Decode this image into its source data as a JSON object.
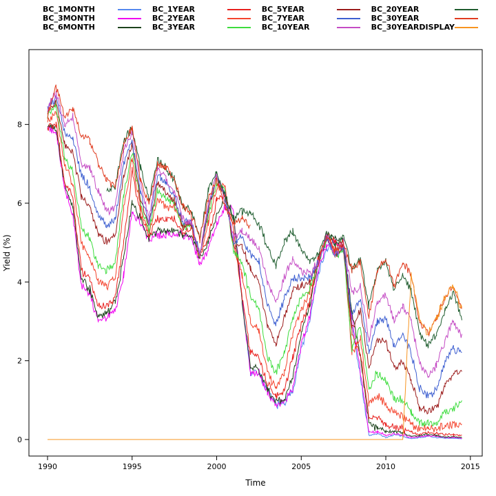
{
  "chart_data": {
    "type": "line",
    "title": "",
    "xlabel": "Time",
    "ylabel": "Yield (%)",
    "legend_position": "top",
    "grid": false,
    "background": "#ffffff",
    "axis_color": "#000000",
    "xlim": [
      1988.9,
      2015.7
    ],
    "ylim": [
      -0.42,
      9.9
    ],
    "xticks": [
      1990,
      1995,
      2000,
      2005,
      2010,
      2015
    ],
    "yticks": [
      0,
      2,
      4,
      6,
      8
    ],
    "x": [
      1990,
      1990.5,
      1991,
      1991.5,
      1992,
      1992.5,
      1993,
      1993.5,
      1994,
      1994.5,
      1995,
      1995.5,
      1996,
      1996.5,
      1997,
      1997.5,
      1998,
      1998.5,
      1999,
      1999.5,
      2000,
      2000.5,
      2001,
      2001.5,
      2002,
      2002.5,
      2003,
      2003.5,
      2004,
      2004.5,
      2005,
      2005.5,
      2006,
      2006.5,
      2007,
      2007.5,
      2008,
      2008.5,
      2009,
      2009.5,
      2010,
      2010.5,
      2011,
      2011.5,
      2012,
      2012.5,
      2013,
      2013.5,
      2014,
      2014.5
    ],
    "series": [
      {
        "name": "BC_1MONTH",
        "color": "#5588EE",
        "values": [
          null,
          null,
          null,
          null,
          null,
          null,
          null,
          null,
          null,
          null,
          null,
          null,
          null,
          null,
          null,
          null,
          null,
          null,
          null,
          null,
          null,
          null,
          null,
          3.6,
          1.7,
          1.7,
          1.2,
          0.9,
          0.9,
          1.25,
          2.3,
          3.0,
          4.2,
          4.8,
          5.0,
          4.8,
          2.9,
          1.6,
          0.1,
          0.15,
          0.05,
          0.12,
          0.08,
          0.02,
          0.05,
          0.08,
          0.05,
          0.03,
          0.03,
          0.02
        ]
      },
      {
        "name": "BC_3MONTH",
        "color": "#F000F0",
        "values": [
          7.9,
          7.8,
          6.4,
          5.7,
          3.9,
          3.7,
          3.0,
          3.1,
          3.3,
          4.2,
          5.8,
          5.5,
          5.1,
          5.2,
          5.2,
          5.2,
          5.2,
          5.1,
          4.5,
          4.8,
          5.5,
          5.9,
          5.8,
          3.6,
          1.7,
          1.7,
          1.2,
          0.9,
          0.95,
          1.3,
          2.4,
          3.1,
          4.3,
          4.9,
          5.0,
          4.9,
          3.1,
          1.7,
          0.2,
          0.2,
          0.1,
          0.15,
          0.12,
          0.05,
          0.07,
          0.1,
          0.08,
          0.05,
          0.05,
          0.03
        ]
      },
      {
        "name": "BC_6MONTH",
        "color": "#1C421C",
        "values": [
          8.0,
          7.9,
          6.5,
          5.9,
          4.1,
          3.8,
          3.1,
          3.2,
          3.5,
          4.6,
          6.0,
          5.6,
          5.1,
          5.3,
          5.3,
          5.3,
          5.2,
          5.2,
          4.6,
          5.0,
          5.7,
          6.1,
          5.6,
          3.5,
          1.8,
          1.8,
          1.25,
          1.0,
          1.0,
          1.6,
          2.7,
          3.4,
          4.5,
          5.1,
          5.1,
          5.0,
          3.2,
          2.1,
          0.4,
          0.3,
          0.2,
          0.2,
          0.17,
          0.08,
          0.1,
          0.13,
          0.1,
          0.07,
          0.07,
          0.05
        ]
      },
      {
        "name": "BC_1YEAR",
        "color": "#E8201E",
        "values": [
          7.9,
          8.0,
          6.6,
          6.1,
          4.3,
          4.1,
          3.4,
          3.4,
          3.6,
          5.0,
          6.8,
          5.7,
          5.2,
          5.6,
          5.6,
          5.6,
          5.2,
          5.4,
          4.7,
          5.1,
          6.1,
          6.2,
          5.3,
          3.6,
          2.2,
          2.1,
          1.4,
          1.1,
          1.2,
          2.1,
          2.9,
          3.5,
          4.6,
          5.2,
          5.0,
          4.9,
          2.7,
          2.2,
          0.6,
          0.5,
          0.4,
          0.3,
          0.27,
          0.19,
          0.12,
          0.2,
          0.15,
          0.13,
          0.12,
          0.1
        ]
      },
      {
        "name": "BC_2YEAR",
        "color": "#F4442E",
        "values": [
          8.1,
          8.3,
          7.0,
          6.5,
          5.0,
          4.6,
          4.0,
          3.9,
          4.1,
          5.9,
          7.1,
          5.9,
          5.2,
          6.1,
          5.9,
          5.9,
          5.4,
          5.5,
          4.6,
          5.5,
          6.4,
          6.4,
          4.9,
          4.2,
          3.0,
          2.8,
          1.7,
          1.3,
          1.7,
          2.7,
          3.3,
          3.7,
          4.5,
          5.2,
          4.8,
          4.9,
          2.2,
          2.6,
          0.9,
          1.1,
          0.9,
          0.7,
          0.6,
          0.4,
          0.25,
          0.3,
          0.25,
          0.37,
          0.38,
          0.47
        ]
      },
      {
        "name": "BC_3YEAR",
        "color": "#3DDC3D",
        "values": [
          8.2,
          8.5,
          7.2,
          6.8,
          5.4,
          5.1,
          4.4,
          4.3,
          4.5,
          6.2,
          7.3,
          6.0,
          5.3,
          6.3,
          6.1,
          6.0,
          5.4,
          5.5,
          4.7,
          5.7,
          6.5,
          6.3,
          4.8,
          4.5,
          3.6,
          3.3,
          2.1,
          1.7,
          2.2,
          3.1,
          3.6,
          3.8,
          4.5,
          5.1,
          4.7,
          4.8,
          2.3,
          2.9,
          1.3,
          1.7,
          1.5,
          1.0,
          1.0,
          0.7,
          0.4,
          0.4,
          0.4,
          0.7,
          0.8,
          0.95
        ]
      },
      {
        "name": "BC_5YEAR",
        "color": "#9B1B1B",
        "values": [
          8.3,
          8.6,
          7.5,
          7.3,
          6.2,
          5.9,
          5.2,
          5.0,
          5.2,
          6.7,
          7.5,
          6.1,
          5.4,
          6.5,
          6.3,
          6.1,
          5.4,
          5.5,
          4.6,
          5.8,
          6.6,
          6.2,
          4.9,
          4.9,
          4.3,
          4.0,
          2.9,
          2.4,
          3.1,
          3.8,
          3.9,
          4.0,
          4.5,
          5.1,
          4.7,
          4.9,
          2.8,
          3.3,
          1.8,
          2.5,
          2.5,
          1.8,
          2.0,
          1.5,
          0.8,
          0.7,
          0.8,
          1.4,
          1.7,
          1.7
        ]
      },
      {
        "name": "BC_7YEAR",
        "color": "#3C5ED0",
        "values": [
          8.4,
          8.7,
          7.8,
          7.6,
          6.7,
          6.4,
          5.7,
          5.4,
          5.6,
          7.0,
          7.6,
          6.3,
          5.5,
          6.7,
          6.5,
          6.2,
          5.5,
          5.5,
          4.7,
          5.9,
          6.7,
          6.2,
          5.0,
          5.1,
          4.7,
          4.5,
          3.4,
          2.9,
          3.6,
          4.1,
          4.1,
          4.1,
          4.5,
          5.1,
          4.7,
          4.9,
          3.1,
          3.6,
          2.2,
          3.0,
          3.1,
          2.4,
          2.7,
          2.2,
          1.3,
          1.1,
          1.25,
          2.0,
          2.3,
          2.2
        ]
      },
      {
        "name": "BC_10YEAR",
        "color": "#C44BC4",
        "values": [
          8.4,
          8.8,
          8.0,
          8.2,
          7.0,
          6.9,
          6.3,
          5.8,
          5.9,
          7.3,
          7.8,
          6.5,
          5.6,
          6.9,
          6.6,
          6.3,
          5.6,
          5.5,
          4.7,
          6.0,
          6.7,
          6.1,
          5.1,
          5.3,
          5.1,
          4.9,
          4.0,
          3.5,
          4.1,
          4.6,
          4.3,
          4.2,
          4.5,
          5.2,
          4.7,
          5.0,
          3.7,
          3.9,
          2.5,
          3.5,
          3.7,
          3.0,
          3.4,
          3.0,
          1.95,
          1.6,
          1.9,
          2.5,
          3.0,
          2.6
        ]
      },
      {
        "name": "BC_20YEAR",
        "color": "#1E5C2E",
        "values": [
          null,
          null,
          null,
          null,
          null,
          null,
          null,
          6.3,
          6.4,
          7.6,
          7.9,
          6.9,
          6.1,
          7.1,
          6.9,
          6.6,
          5.9,
          5.8,
          5.1,
          6.3,
          6.8,
          6.2,
          5.6,
          5.8,
          5.7,
          5.5,
          4.9,
          4.4,
          5.0,
          5.3,
          4.8,
          4.5,
          4.7,
          5.3,
          4.9,
          5.2,
          4.3,
          4.6,
          3.4,
          4.3,
          4.5,
          3.8,
          4.2,
          3.8,
          2.7,
          2.4,
          2.7,
          3.3,
          3.7,
          3.1
        ]
      },
      {
        "name": "BC_30YEAR",
        "color": "#E03A1E",
        "values": [
          8.2,
          9.0,
          8.2,
          8.4,
          7.7,
          7.6,
          7.0,
          6.6,
          6.4,
          7.5,
          7.9,
          6.6,
          6.0,
          7.0,
          6.9,
          6.6,
          5.9,
          5.7,
          5.1,
          6.1,
          6.6,
          5.9,
          5.5,
          5.6,
          5.4,
          null,
          null,
          null,
          null,
          null,
          null,
          null,
          4.5,
          5.2,
          4.8,
          5.0,
          4.3,
          4.5,
          3.1,
          4.3,
          4.6,
          3.9,
          4.5,
          4.2,
          3.0,
          2.7,
          3.1,
          3.6,
          3.9,
          3.3
        ]
      },
      {
        "name": "BC_30YEARDISPLAY",
        "color": "#F79420",
        "values": [
          0,
          0,
          0,
          0,
          0,
          0,
          0,
          0,
          0,
          0,
          0,
          0,
          0,
          0,
          0,
          0,
          0,
          0,
          0,
          0,
          0,
          0,
          0,
          0,
          0,
          0,
          0,
          0,
          0,
          0,
          0,
          0,
          0,
          0,
          0,
          0,
          0,
          0,
          0,
          0,
          0,
          0,
          0,
          4.2,
          3.0,
          2.7,
          3.1,
          3.6,
          3.9,
          3.3
        ]
      }
    ]
  }
}
